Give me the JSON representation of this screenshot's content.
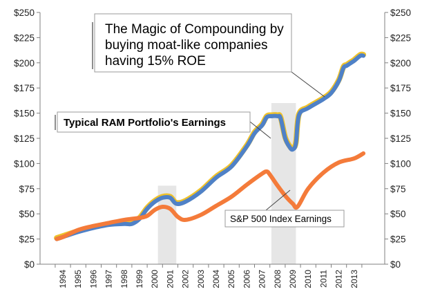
{
  "chart_data": {
    "type": "line",
    "categories": [
      "1994",
      "1995",
      "1996",
      "1997",
      "1998",
      "1999",
      "2000",
      "2001",
      "2002",
      "2003",
      "2004",
      "2005",
      "2006",
      "2007",
      "2008",
      "2009",
      "2010",
      "2011",
      "2012",
      "2013"
    ],
    "ylim": [
      0,
      250
    ],
    "yticks": [
      0,
      25,
      50,
      75,
      100,
      125,
      150,
      175,
      200,
      225,
      250
    ],
    "ytick_labels": [
      "$0",
      "$25",
      "$50",
      "$75",
      "$100",
      "$125",
      "$150",
      "$175",
      "$200",
      "$225",
      "$250"
    ],
    "axes": "left and right (mirrored)",
    "shaded_periods": [
      {
        "start": 2000.2,
        "end": 2001.4
      },
      {
        "start": 2007.6,
        "end": 2009.2
      }
    ],
    "series": [
      {
        "name": "Typical RAM Portfolio's Earnings",
        "color": "#4f81c7",
        "x": [
          1993.6,
          1994,
          1995,
          1996,
          1997,
          1998,
          1998.5,
          1999,
          1999.5,
          2000,
          2000.5,
          2001,
          2001.4,
          2002,
          2003,
          2004,
          2005,
          2006,
          2006.5,
          2007,
          2007.3,
          2007.6,
          2008,
          2008.2,
          2008.5,
          2008.8,
          2009,
          2009.2,
          2009.4,
          2010,
          2011,
          2011.5,
          2012,
          2012.3,
          2012.5,
          2012.8,
          2013,
          2013.4,
          2013.6
        ],
        "y": [
          25,
          27,
          32,
          36,
          39,
          40,
          40,
          45,
          55,
          62,
          66,
          66,
          60,
          62,
          72,
          86,
          97,
          117,
          130,
          138,
          146,
          147,
          147,
          145,
          125,
          116,
          114,
          120,
          148,
          155,
          164,
          170,
          182,
          195,
          197,
          200,
          202,
          207,
          207
        ]
      },
      {
        "name": "S&P 500 Index Earnings",
        "color": "#f47b3a",
        "x": [
          1993.6,
          1994,
          1995,
          1996,
          1997,
          1998,
          1999,
          1999.5,
          2000,
          2000.5,
          2001,
          2001.5,
          2002,
          2003,
          2004,
          2005,
          2006,
          2007,
          2007.3,
          2007.5,
          2008,
          2008.5,
          2009,
          2009.3,
          2010,
          2011,
          2012,
          2013,
          2013.6
        ],
        "y": [
          25,
          27,
          34,
          38,
          41,
          44,
          46,
          48,
          54,
          57,
          55,
          47,
          44,
          49,
          58,
          67,
          79,
          90,
          92,
          89,
          78,
          68,
          60,
          57,
          75,
          91,
          101,
          105,
          110
        ]
      }
    ],
    "annotations": [
      {
        "id": "title",
        "lines": [
          "The Magic of Compounding by",
          "buying moat-like companies",
          "having 15% ROE"
        ]
      },
      {
        "id": "ram",
        "lines": [
          "Typical RAM Portfolio's Earnings"
        ]
      },
      {
        "id": "sp",
        "lines": [
          "S&P 500 Index Earnings"
        ]
      }
    ]
  }
}
